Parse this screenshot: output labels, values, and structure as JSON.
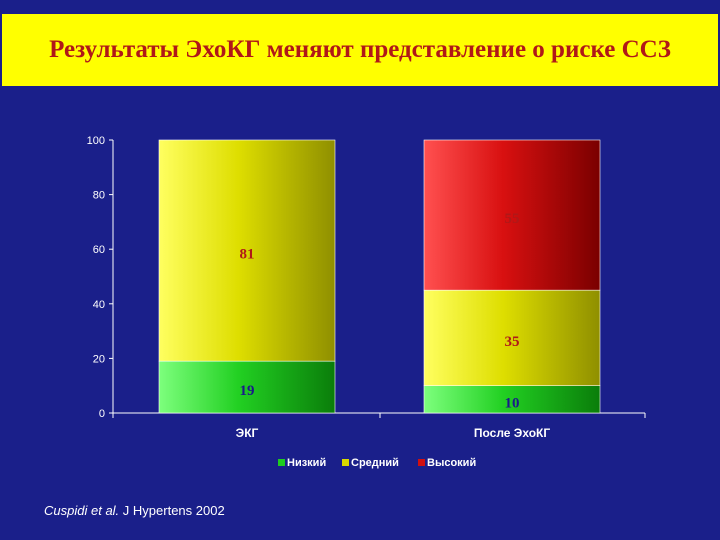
{
  "title": "Результаты ЭхоКГ меняют представление о риске ССЗ",
  "citation": {
    "authors": "Cuspidi",
    "etal": "et al.",
    "journal": "J Hypertens",
    "year": "2002"
  },
  "colors": {
    "background": "#1a1f8a",
    "banner": "#ffff00",
    "title_text": "#b01818",
    "low": "#1fcc1f",
    "medium": "#d8d800",
    "high": "#d01010"
  },
  "chart_data": {
    "type": "bar",
    "stacked": true,
    "categories": [
      "ЭКГ",
      "После ЭхоКГ"
    ],
    "series": [
      {
        "name": "Низкий",
        "values": [
          19,
          10
        ],
        "color": "#1fcc1f"
      },
      {
        "name": "Средний",
        "values": [
          81,
          35
        ],
        "color": "#d8d800"
      },
      {
        "name": "Высокий",
        "values": [
          0,
          55
        ],
        "color": "#d01010"
      }
    ],
    "data_labels": [
      [
        "19",
        "10"
      ],
      [
        "81",
        "35"
      ],
      [
        "",
        "55"
      ]
    ],
    "yticks": [
      "0",
      "20",
      "40",
      "60",
      "80",
      "100"
    ],
    "ylim": [
      0,
      100
    ],
    "legend_position": "bottom",
    "grid": false
  }
}
